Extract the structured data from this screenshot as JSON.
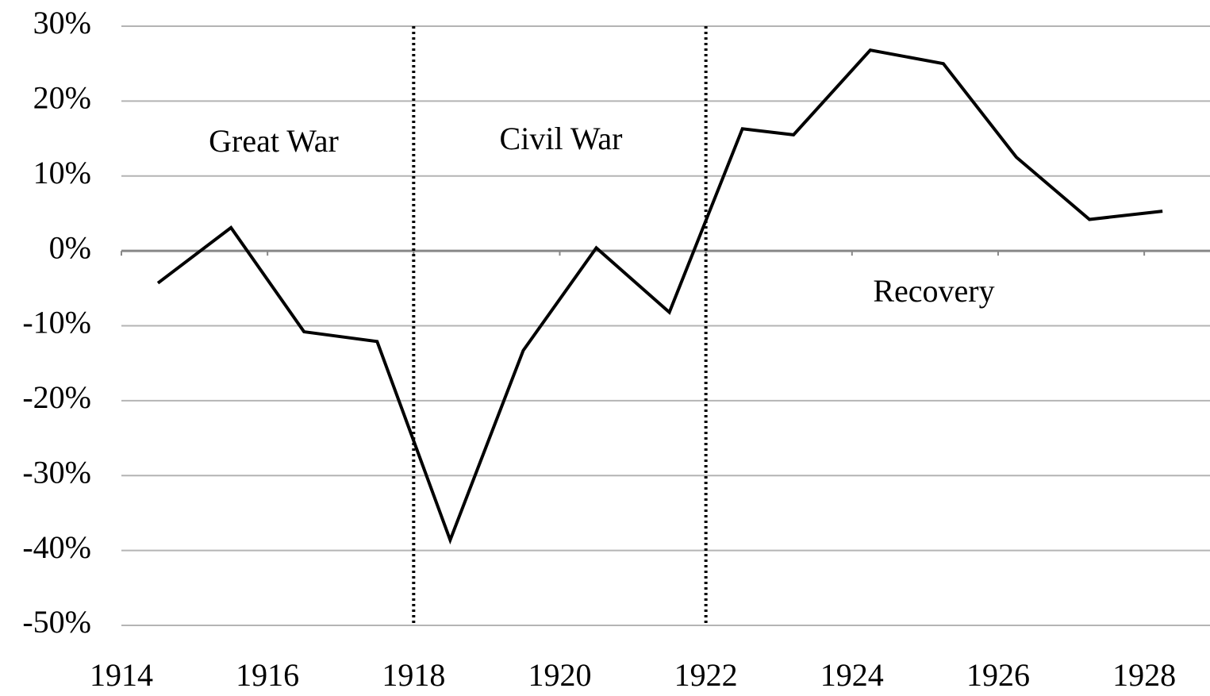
{
  "chart_data": {
    "type": "line",
    "x": [
      1914.5,
      1915.5,
      1916.5,
      1917.5,
      1918.5,
      1919.5,
      1920.5,
      1921.5,
      1922.5,
      1923.2,
      1924.25,
      1925.25,
      1926.25,
      1927.25,
      1928.25
    ],
    "series": [
      {
        "color": "#000000",
        "values": [
          -4.3,
          3.1,
          -10.8,
          -12.1,
          -38.6,
          -13.3,
          0.4,
          -8.2,
          16.3,
          15.5,
          26.8,
          25.0,
          12.5,
          4.2,
          5.3
        ]
      }
    ],
    "xlim": [
      1914,
      1928.9
    ],
    "xticks": [
      1914,
      1916,
      1918,
      1920,
      1922,
      1924,
      1926,
      1928
    ],
    "ylim": [
      -50,
      30
    ],
    "yticks": [
      {
        "value": -50,
        "label": "-50%"
      },
      {
        "value": -40,
        "label": "-40%"
      },
      {
        "value": -30,
        "label": "-30%"
      },
      {
        "value": -20,
        "label": "-20%"
      },
      {
        "value": -10,
        "label": "-10%"
      },
      {
        "value": 0,
        "label": "0%"
      },
      {
        "value": 10,
        "label": "10%"
      },
      {
        "value": 20,
        "label": "20%"
      },
      {
        "value": 30,
        "label": "30%"
      }
    ],
    "vlines": [
      1918,
      1922
    ],
    "annotations": [
      "Great War",
      "Civil War",
      "Recovery"
    ],
    "grid": true
  }
}
